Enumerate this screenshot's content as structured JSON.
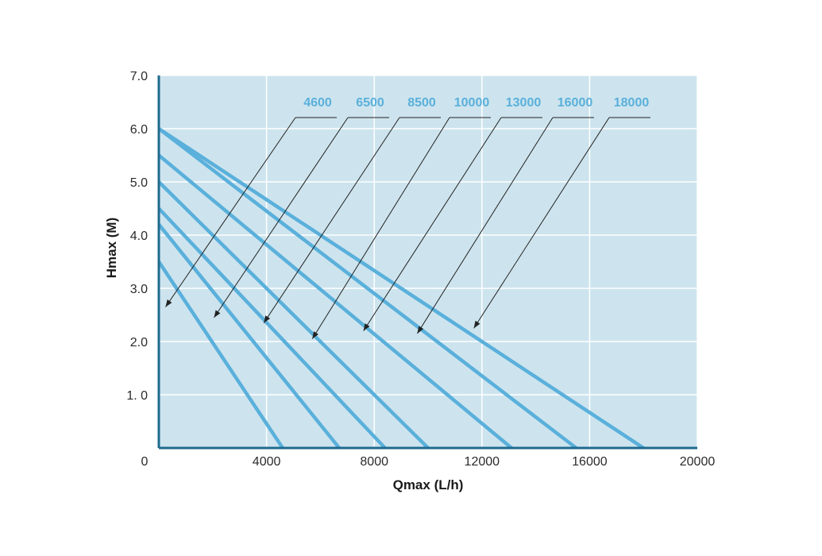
{
  "chart_data": {
    "type": "line",
    "xlabel": "Qmax (L/h)",
    "ylabel": "Hmax (M)",
    "xlim": [
      0,
      20000
    ],
    "ylim": [
      0,
      7.0
    ],
    "x_ticks": [
      "0",
      "4000",
      "8000",
      "12000",
      "16000",
      "20000"
    ],
    "y_ticks": [
      "1. 0",
      "2.0",
      "3.0",
      "4.0",
      "5.0",
      "6.0",
      "7.0"
    ],
    "grid": true,
    "series": [
      {
        "name": "4600",
        "x": [
          0,
          4600
        ],
        "y": [
          3.5,
          0
        ],
        "pointer_at": [
          250,
          2.65
        ]
      },
      {
        "name": "6500",
        "x": [
          0,
          6700
        ],
        "y": [
          4.2,
          0
        ],
        "pointer_at": [
          2050,
          2.45
        ]
      },
      {
        "name": "8500",
        "x": [
          0,
          8400
        ],
        "y": [
          4.5,
          0
        ],
        "pointer_at": [
          3900,
          2.35
        ]
      },
      {
        "name": "10000",
        "x": [
          0,
          10000
        ],
        "y": [
          5.0,
          0
        ],
        "pointer_at": [
          5700,
          2.05
        ]
      },
      {
        "name": "13000",
        "x": [
          0,
          13100
        ],
        "y": [
          5.5,
          0
        ],
        "pointer_at": [
          7600,
          2.2
        ]
      },
      {
        "name": "16000",
        "x": [
          0,
          15500
        ],
        "y": [
          6.0,
          0
        ],
        "pointer_at": [
          9600,
          2.15
        ]
      },
      {
        "name": "18000",
        "x": [
          0,
          18000
        ],
        "y": [
          6.0,
          0
        ],
        "pointer_at": [
          11700,
          2.25
        ]
      }
    ],
    "colors": {
      "plot_background": "#cde4ee",
      "grid": "#ffffff",
      "line": "#5ab0db",
      "axis": "#1e6a8f",
      "pointer": "#222222"
    }
  }
}
